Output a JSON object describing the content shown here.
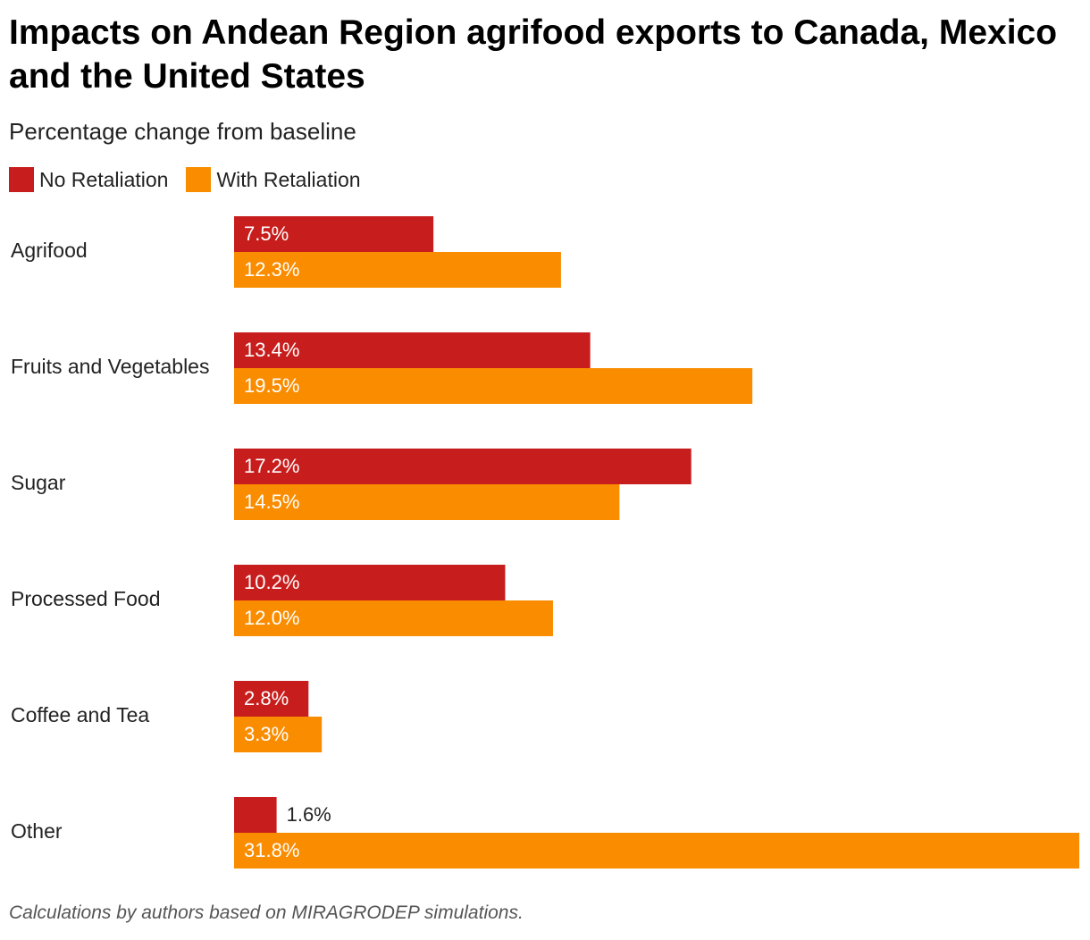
{
  "chart_data": {
    "type": "bar",
    "orientation": "horizontal",
    "title": "Impacts on Andean Region agrifood exports to Canada, Mexico and the United States",
    "subtitle": "Percentage change from baseline",
    "categories": [
      "Agrifood",
      "Fruits and Vegetables",
      "Sugar",
      "Processed Food",
      "Coffee and Tea",
      "Other"
    ],
    "series": [
      {
        "name": "No Retaliation",
        "color": "#c71e1d",
        "values": [
          7.5,
          13.4,
          17.2,
          10.2,
          2.8,
          1.6
        ],
        "labels": [
          "7.5%",
          "13.4%",
          "17.2%",
          "10.2%",
          "2.8%",
          "1.6%"
        ]
      },
      {
        "name": "With Retaliation",
        "color": "#fa8c00",
        "values": [
          12.3,
          19.5,
          14.5,
          12.0,
          3.3,
          31.8
        ],
        "labels": [
          "12.3%",
          "19.5%",
          "14.5%",
          "12.0%",
          "3.3%",
          "31.8%"
        ]
      }
    ],
    "xlim": [
      0,
      31.8
    ],
    "legend_position": "top-left",
    "grid": false,
    "note": "Calculations by authors based on MIRAGRODEP simulations."
  }
}
